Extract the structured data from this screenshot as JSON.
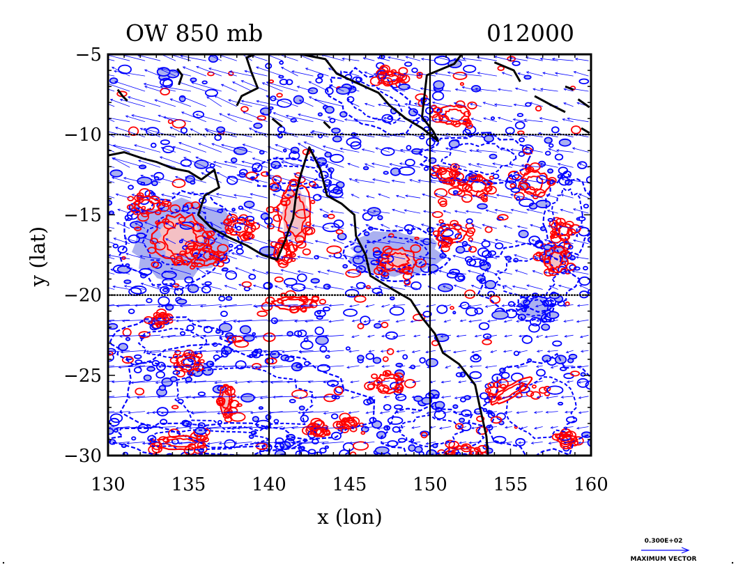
{
  "chart_data": {
    "type": "contour",
    "title_left": "OW 850 mb",
    "title_right": "012000",
    "xlabel": "x (lon)",
    "ylabel": "y (lat)",
    "xlim": [
      130,
      160
    ],
    "ylim": [
      -30,
      -5
    ],
    "xticks": [
      130,
      135,
      140,
      145,
      150,
      155,
      160
    ],
    "yticks": [
      -5,
      -10,
      -15,
      -20,
      -25,
      -30
    ],
    "xtick_labels": [
      "130",
      "135",
      "140",
      "145",
      "150",
      "155",
      "160"
    ],
    "ytick_labels": [
      "−5",
      "−10",
      "−15",
      "−20",
      "−25",
      "−30"
    ],
    "grid_lines": {
      "lon": [
        140,
        150
      ],
      "lat": [
        -10,
        -20
      ]
    },
    "colors": {
      "negative_contour": "#0000ff",
      "negative_fill": "#aab0f0",
      "positive_contour": "#ff0000",
      "positive_fill": "#f4c0c4",
      "coastline": "#000000",
      "vectors": "#0000ff"
    },
    "vector_legend": {
      "magnitude": "0.300E+02",
      "label": "MAXIMUM VECTOR"
    },
    "coastline": [
      [
        [
          130.0,
          -11.3
        ],
        [
          131.0,
          -11.1
        ],
        [
          132.2,
          -11.5
        ],
        [
          133.0,
          -11.7
        ],
        [
          134.0,
          -12.1
        ],
        [
          135.0,
          -12.3
        ],
        [
          135.8,
          -12.8
        ],
        [
          136.6,
          -12.2
        ],
        [
          136.9,
          -13.3
        ],
        [
          136.0,
          -13.8
        ],
        [
          135.6,
          -15.0
        ],
        [
          136.4,
          -15.8
        ],
        [
          137.5,
          -16.4
        ],
        [
          138.6,
          -16.9
        ],
        [
          139.6,
          -17.5
        ],
        [
          140.5,
          -17.8
        ],
        [
          141.0,
          -16.6
        ],
        [
          141.5,
          -15.2
        ],
        [
          141.7,
          -13.6
        ],
        [
          142.0,
          -12.4
        ],
        [
          142.5,
          -10.8
        ],
        [
          143.2,
          -12.2
        ],
        [
          143.6,
          -13.8
        ],
        [
          144.5,
          -14.3
        ],
        [
          145.3,
          -15.0
        ],
        [
          145.4,
          -16.3
        ],
        [
          146.0,
          -17.5
        ],
        [
          146.3,
          -18.8
        ],
        [
          147.6,
          -19.6
        ],
        [
          148.8,
          -20.3
        ],
        [
          149.5,
          -21.4
        ],
        [
          150.3,
          -22.4
        ],
        [
          150.8,
          -23.6
        ],
        [
          151.8,
          -24.3
        ],
        [
          152.8,
          -25.6
        ],
        [
          153.1,
          -27.0
        ],
        [
          153.5,
          -28.8
        ],
        [
          153.6,
          -30.0
        ]
      ],
      [
        [
          138.0,
          -8.2
        ],
        [
          138.3,
          -7.6
        ],
        [
          139.3,
          -7.1
        ],
        [
          138.9,
          -6.1
        ],
        [
          138.6,
          -5.2
        ],
        [
          139.4,
          -4.9
        ],
        [
          140.5,
          -4.7
        ],
        [
          142.0,
          -5.0
        ],
        [
          143.5,
          -5.3
        ],
        [
          144.2,
          -6.2
        ],
        [
          145.5,
          -6.8
        ],
        [
          146.8,
          -7.4
        ],
        [
          147.5,
          -8.2
        ],
        [
          148.5,
          -9.0
        ],
        [
          149.5,
          -9.6
        ],
        [
          150.5,
          -10.4
        ],
        [
          150.2,
          -9.8
        ],
        [
          149.5,
          -8.9
        ],
        [
          149.8,
          -6.3
        ],
        [
          151.5,
          -5.6
        ],
        [
          152.2,
          -4.7
        ],
        [
          150.0,
          -5.0
        ]
      ],
      [
        [
          130.6,
          -7.2
        ],
        [
          130.9,
          -7.6
        ],
        [
          131.2,
          -7.9
        ]
      ],
      [
        [
          134.3,
          -5.9
        ],
        [
          134.6,
          -6.3
        ],
        [
          134.4,
          -6.9
        ]
      ],
      [
        [
          154.0,
          -5.5
        ],
        [
          155.2,
          -6.0
        ],
        [
          155.6,
          -6.7
        ]
      ],
      [
        [
          156.5,
          -7.6
        ],
        [
          157.6,
          -8.2
        ],
        [
          158.4,
          -8.6
        ]
      ],
      [
        [
          159.2,
          -7.8
        ],
        [
          159.9,
          -8.3
        ]
      ],
      [
        [
          158.4,
          -7.0
        ],
        [
          158.9,
          -7.2
        ]
      ],
      [
        [
          159.4,
          -9.6
        ],
        [
          159.9,
          -9.9
        ]
      ],
      [
        [
          140.2,
          -9.0
        ],
        [
          140.8,
          -9.5
        ]
      ],
      [
        [
          143.4,
          -9.2
        ],
        [
          143.8,
          -9.6
        ]
      ]
    ],
    "features": [
      {
        "sign": "positive",
        "lon": 134.5,
        "lat": -16.5,
        "rx": 1.6,
        "ry": 1.5,
        "rot": -15,
        "fill": true
      },
      {
        "sign": "positive",
        "lon": 132.4,
        "lat": -14.4,
        "rx": 0.8,
        "ry": 0.5,
        "rot": 0,
        "fill": false
      },
      {
        "sign": "positive",
        "lon": 135.8,
        "lat": -17.5,
        "rx": 1.0,
        "ry": 0.6,
        "rot": 10,
        "fill": false
      },
      {
        "sign": "positive",
        "lon": 138.2,
        "lat": -15.8,
        "rx": 0.8,
        "ry": 0.5,
        "rot": 0,
        "fill": false
      },
      {
        "sign": "positive",
        "lon": 141.6,
        "lat": -15.0,
        "rx": 1.0,
        "ry": 2.0,
        "rot": 0,
        "fill": true
      },
      {
        "sign": "positive",
        "lon": 140.8,
        "lat": -17.4,
        "rx": 0.5,
        "ry": 0.7,
        "rot": 0,
        "fill": false
      },
      {
        "sign": "positive",
        "lon": 148.0,
        "lat": -17.8,
        "rx": 1.1,
        "ry": 0.7,
        "rot": 0,
        "fill": true
      },
      {
        "sign": "positive",
        "lon": 151.3,
        "lat": -16.2,
        "rx": 0.9,
        "ry": 0.6,
        "rot": 0,
        "fill": false
      },
      {
        "sign": "positive",
        "lon": 156.5,
        "lat": -13.0,
        "rx": 0.9,
        "ry": 0.7,
        "rot": 0,
        "fill": false
      },
      {
        "sign": "positive",
        "lon": 157.8,
        "lat": -17.8,
        "rx": 0.7,
        "ry": 0.8,
        "rot": 0,
        "fill": true
      },
      {
        "sign": "positive",
        "lon": 158.3,
        "lat": -16.0,
        "rx": 0.5,
        "ry": 0.5,
        "rot": 0,
        "fill": false
      },
      {
        "sign": "positive",
        "lon": 141.5,
        "lat": -20.5,
        "rx": 1.2,
        "ry": 0.4,
        "rot": 0,
        "fill": false
      },
      {
        "sign": "positive",
        "lon": 151.5,
        "lat": -8.8,
        "rx": 1.0,
        "ry": 0.6,
        "rot": 0,
        "fill": false
      },
      {
        "sign": "positive",
        "lon": 147.5,
        "lat": -6.5,
        "rx": 0.8,
        "ry": 0.4,
        "rot": 0,
        "fill": false
      },
      {
        "sign": "positive",
        "lon": 151.0,
        "lat": -12.5,
        "rx": 0.6,
        "ry": 0.4,
        "rot": 0,
        "fill": false
      },
      {
        "sign": "positive",
        "lon": 153.0,
        "lat": -13.2,
        "rx": 0.8,
        "ry": 0.6,
        "rot": 0,
        "fill": false
      },
      {
        "sign": "positive",
        "lon": 155.0,
        "lat": -26.0,
        "rx": 1.5,
        "ry": 0.35,
        "rot": -30,
        "fill": false
      },
      {
        "sign": "positive",
        "lon": 137.3,
        "lat": -26.5,
        "rx": 0.4,
        "ry": 0.9,
        "rot": 0,
        "fill": true
      },
      {
        "sign": "positive",
        "lon": 135.0,
        "lat": -24.2,
        "rx": 0.7,
        "ry": 0.5,
        "rot": 0,
        "fill": false
      },
      {
        "sign": "positive",
        "lon": 134.5,
        "lat": -29.2,
        "rx": 1.5,
        "ry": 0.4,
        "rot": 0,
        "fill": false
      },
      {
        "sign": "positive",
        "lon": 152.0,
        "lat": -29.8,
        "rx": 1.0,
        "ry": 0.4,
        "rot": 0,
        "fill": false
      },
      {
        "sign": "positive",
        "lon": 147.5,
        "lat": -25.5,
        "rx": 0.8,
        "ry": 0.6,
        "rot": 0,
        "fill": false
      },
      {
        "sign": "positive",
        "lon": 143.0,
        "lat": -28.5,
        "rx": 0.4,
        "ry": 0.3,
        "rot": 0,
        "fill": false
      },
      {
        "sign": "positive",
        "lon": 158.5,
        "lat": -29.0,
        "rx": 0.6,
        "ry": 0.3,
        "rot": 0,
        "fill": false
      },
      {
        "sign": "positive",
        "lon": 133.3,
        "lat": -21.5,
        "rx": 0.5,
        "ry": 0.3,
        "rot": 0,
        "fill": false
      },
      {
        "sign": "positive",
        "lon": 145.0,
        "lat": -28.0,
        "rx": 0.5,
        "ry": 0.3,
        "rot": 0,
        "fill": false
      },
      {
        "sign": "negative",
        "lon": 134.5,
        "lat": -16.5,
        "rx": 3.6,
        "ry": 2.8,
        "rot": -15,
        "fill": true
      },
      {
        "sign": "negative",
        "lon": 147.8,
        "lat": -17.4,
        "rx": 3.2,
        "ry": 1.6,
        "rot": 0,
        "fill": true
      },
      {
        "sign": "negative",
        "lon": 138.5,
        "lat": -26.5,
        "rx": 7.5,
        "ry": 3.0,
        "rot": 5,
        "fill": false
      },
      {
        "sign": "negative",
        "lon": 134.0,
        "lat": -23.0,
        "rx": 3.5,
        "ry": 1.5,
        "rot": 0,
        "fill": false
      },
      {
        "sign": "negative",
        "lon": 156.0,
        "lat": -19.0,
        "rx": 3.0,
        "ry": 2.0,
        "rot": 0,
        "fill": false
      },
      {
        "sign": "negative",
        "lon": 156.5,
        "lat": -20.8,
        "rx": 1.2,
        "ry": 0.8,
        "rot": 0,
        "fill": true
      },
      {
        "sign": "negative",
        "lon": 146.5,
        "lat": -8.0,
        "rx": 3.0,
        "ry": 1.5,
        "rot": 30,
        "fill": false
      },
      {
        "sign": "negative",
        "lon": 157.0,
        "lat": -27.0,
        "rx": 3.5,
        "ry": 3.0,
        "rot": 0,
        "fill": false
      },
      {
        "sign": "negative",
        "lon": 153.0,
        "lat": -11.5,
        "rx": 3.5,
        "ry": 1.5,
        "rot": 0,
        "fill": false
      },
      {
        "sign": "negative",
        "lon": 136.0,
        "lat": -29.0,
        "rx": 6.0,
        "ry": 1.0,
        "rot": 0,
        "fill": false
      },
      {
        "sign": "negative",
        "lon": 150.0,
        "lat": -28.5,
        "rx": 3.0,
        "ry": 1.5,
        "rot": 0,
        "fill": false
      },
      {
        "sign": "negative",
        "lon": 141.5,
        "lat": -12.5,
        "rx": 2.5,
        "ry": 1.0,
        "rot": 0,
        "fill": false
      },
      {
        "sign": "negative",
        "lon": 158.5,
        "lat": -15.0,
        "rx": 1.5,
        "ry": 2.5,
        "rot": 0,
        "fill": false
      }
    ],
    "vector_field": [
      {
        "lon_min": 130,
        "lon_max": 145,
        "lat_min": -13,
        "lat_max": -5,
        "u": -15,
        "v": 5
      },
      {
        "lon_min": 145,
        "lon_max": 160,
        "lat_min": -13,
        "lat_max": -5,
        "u": -10,
        "v": 2
      },
      {
        "lon_min": 130,
        "lon_max": 140,
        "lat_min": -20,
        "lat_max": -13,
        "u": -10,
        "v": 3
      },
      {
        "lon_min": 140,
        "lon_max": 160,
        "lat_min": -20,
        "lat_max": -13,
        "u": -8,
        "v": 2
      },
      {
        "lon_min": 130,
        "lon_max": 145,
        "lat_min": -30,
        "lat_max": -20,
        "u": -14,
        "v": -1
      },
      {
        "lon_min": 145,
        "lon_max": 160,
        "lat_min": -30,
        "lat_max": -20,
        "u": -6,
        "v": -1
      }
    ]
  }
}
